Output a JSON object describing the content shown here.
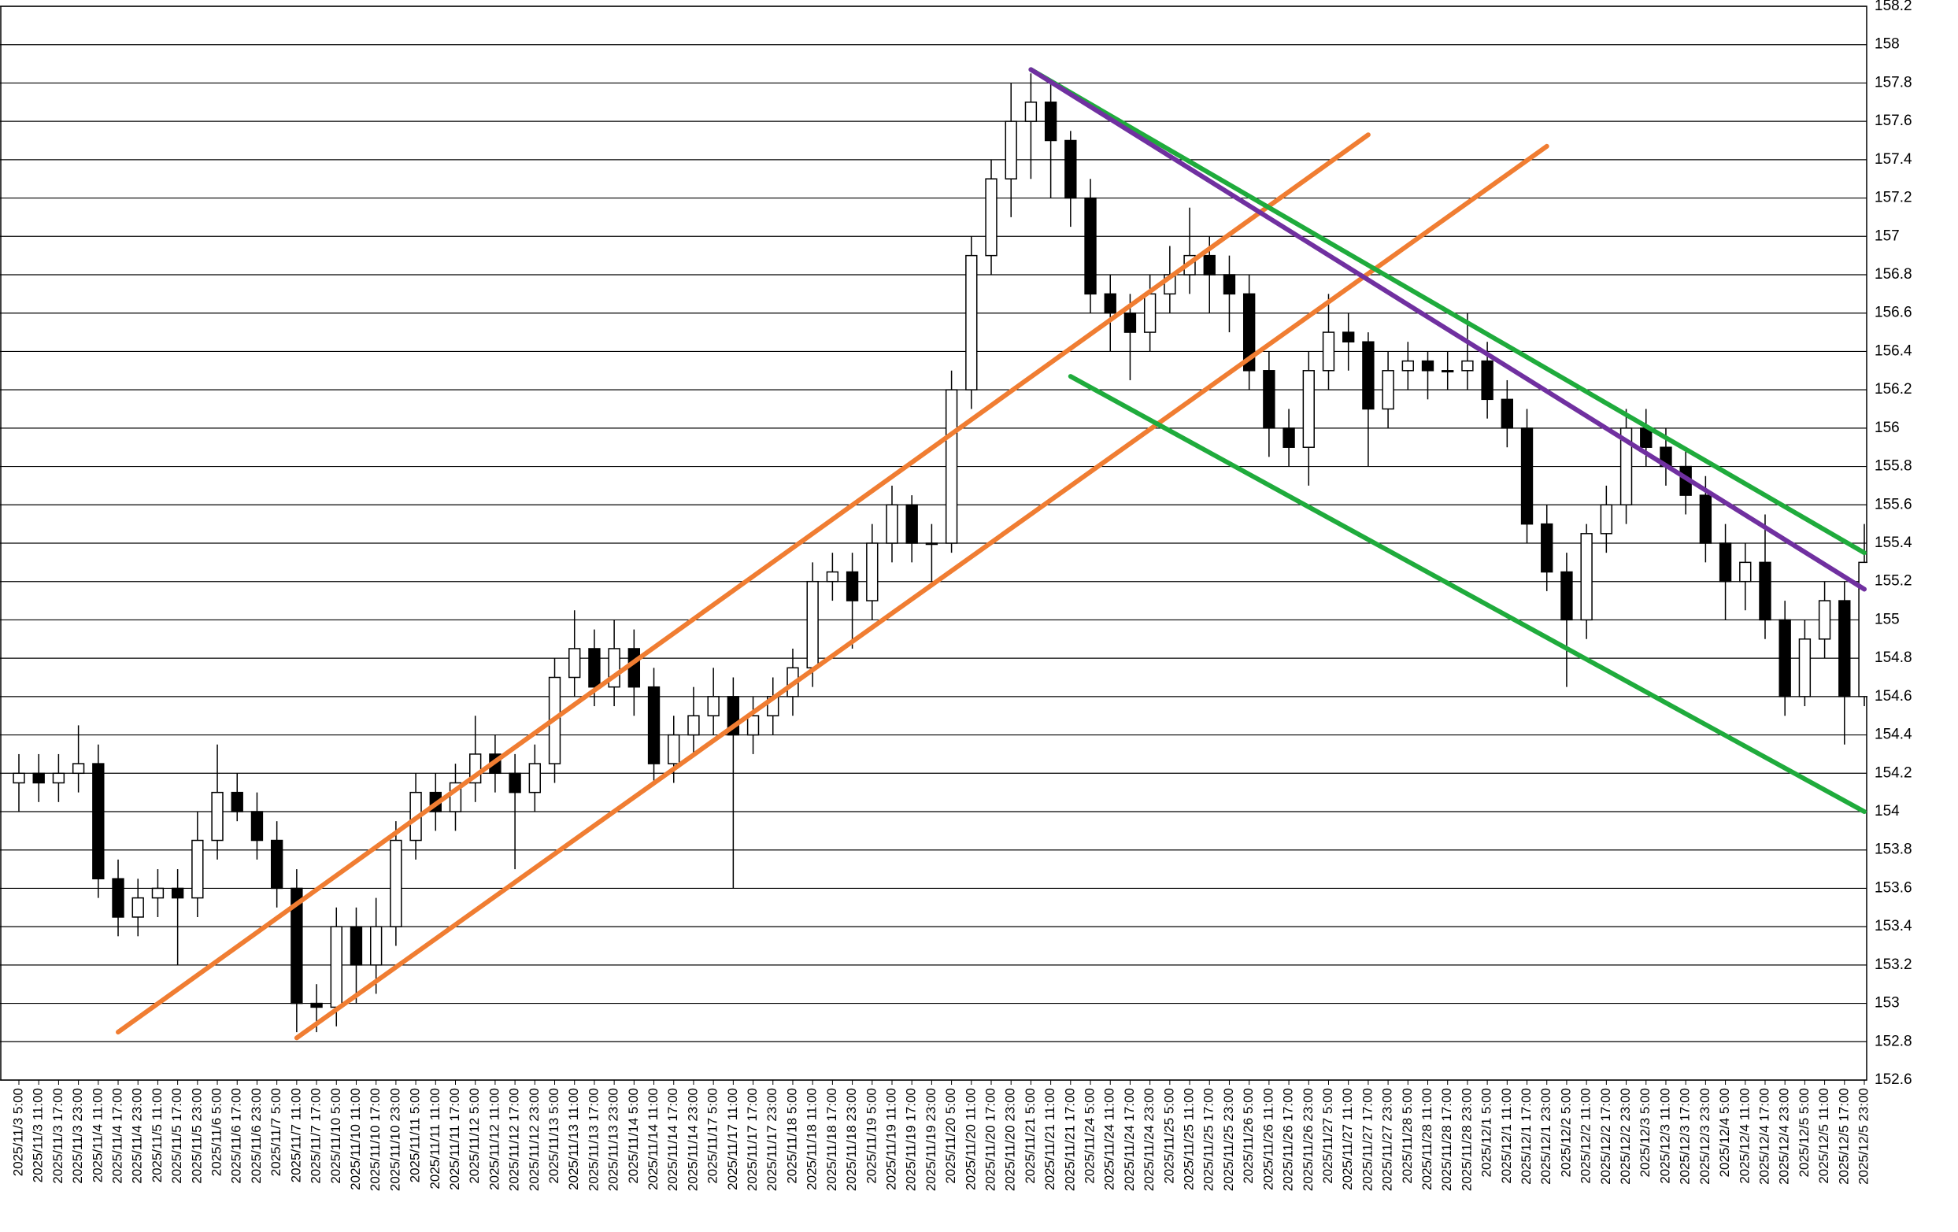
{
  "chart_data": {
    "type": "candlestick",
    "categories": [
      "2025/11/3 5:00",
      "2025/11/3 11:00",
      "2025/11/3 17:00",
      "2025/11/3 23:00",
      "2025/11/4 11:00",
      "2025/11/4 17:00",
      "2025/11/4 23:00",
      "2025/11/5 11:00",
      "2025/11/5 17:00",
      "2025/11/5 23:00",
      "2025/11/6 5:00",
      "2025/11/6 17:00",
      "2025/11/6 23:00",
      "2025/11/7 5:00",
      "2025/11/7 11:00",
      "2025/11/7 17:00",
      "2025/11/10 5:00",
      "2025/11/10 11:00",
      "2025/11/10 17:00",
      "2025/11/10 23:00",
      "2025/11/11 5:00",
      "2025/11/11 11:00",
      "2025/11/11 17:00",
      "2025/11/12 5:00",
      "2025/11/12 11:00",
      "2025/11/12 17:00",
      "2025/11/12 23:00",
      "2025/11/13 5:00",
      "2025/11/13 11:00",
      "2025/11/13 17:00",
      "2025/11/13 23:00",
      "2025/11/14 5:00",
      "2025/11/14 11:00",
      "2025/11/14 17:00",
      "2025/11/14 23:00",
      "2025/11/17 5:00",
      "2025/11/17 11:00",
      "2025/11/17 17:00",
      "2025/11/17 23:00",
      "2025/11/18 5:00",
      "2025/11/18 11:00",
      "2025/11/18 17:00",
      "2025/11/18 23:00",
      "2025/11/19 5:00",
      "2025/11/19 11:00",
      "2025/11/19 17:00",
      "2025/11/19 23:00",
      "2025/11/20 5:00",
      "2025/11/20 11:00",
      "2025/11/20 17:00",
      "2025/11/20 23:00",
      "2025/11/21 5:00",
      "2025/11/21 11:00",
      "2025/11/21 17:00",
      "2025/11/24 5:00",
      "2025/11/24 11:00",
      "2025/11/24 17:00",
      "2025/11/24 23:00",
      "2025/11/25 5:00",
      "2025/11/25 11:00",
      "2025/11/25 17:00",
      "2025/11/25 23:00",
      "2025/11/26 5:00",
      "2025/11/26 11:00",
      "2025/11/26 17:00",
      "2025/11/26 23:00",
      "2025/11/27 5:00",
      "2025/11/27 11:00",
      "2025/11/27 17:00",
      "2025/11/27 23:00",
      "2025/11/28 5:00",
      "2025/11/28 11:00",
      "2025/11/28 17:00",
      "2025/11/28 23:00",
      "2025/12/1 5:00",
      "2025/12/1 11:00",
      "2025/12/1 17:00",
      "2025/12/1 23:00",
      "2025/12/2 5:00",
      "2025/12/2 11:00",
      "2025/12/2 17:00",
      "2025/12/2 23:00",
      "2025/12/3 5:00",
      "2025/12/3 11:00",
      "2025/12/3 17:00",
      "2025/12/3 23:00",
      "2025/12/4 5:00",
      "2025/12/4 11:00",
      "2025/12/4 17:00",
      "2025/12/4 23:00",
      "2025/12/5 5:00",
      "2025/12/5 11:00",
      "2025/12/5 17:00",
      "2025/12/5 23:00"
    ],
    "open": [
      154.15,
      154.2,
      154.15,
      154.2,
      154.25,
      153.65,
      153.45,
      153.55,
      153.6,
      153.55,
      153.85,
      154.1,
      154.0,
      153.85,
      153.6,
      153.0,
      152.98,
      153.4,
      153.2,
      153.4,
      153.85,
      154.1,
      154.0,
      154.15,
      154.3,
      154.2,
      154.1,
      154.25,
      154.7,
      154.85,
      154.65,
      154.85,
      154.65,
      154.25,
      154.4,
      154.5,
      154.6,
      154.4,
      154.5,
      154.6,
      154.75,
      155.2,
      155.25,
      155.1,
      155.4,
      155.6,
      155.4,
      155.4,
      156.2,
      156.9,
      157.3,
      157.6,
      157.7,
      157.5,
      157.2,
      156.7,
      156.6,
      156.5,
      156.7,
      156.8,
      156.9,
      156.8,
      156.7,
      156.3,
      156.0,
      155.9,
      156.3,
      156.5,
      156.45,
      156.1,
      156.3,
      156.35,
      156.3,
      156.3,
      156.35,
      156.15,
      156.0,
      155.5,
      155.25,
      155.0,
      155.45,
      155.6,
      156.0,
      155.9,
      155.8,
      155.65,
      155.4,
      155.2,
      155.3,
      155.0,
      154.6,
      154.9,
      155.1,
      154.6
    ],
    "high": [
      154.3,
      154.3,
      154.3,
      154.45,
      154.35,
      153.75,
      153.65,
      153.7,
      153.7,
      154.0,
      154.35,
      154.2,
      154.1,
      153.95,
      153.7,
      153.1,
      153.5,
      153.5,
      153.55,
      153.95,
      154.2,
      154.2,
      154.25,
      154.5,
      154.4,
      154.3,
      154.35,
      154.8,
      155.05,
      154.95,
      155.0,
      154.95,
      154.75,
      154.5,
      154.65,
      154.75,
      154.7,
      154.6,
      154.7,
      154.85,
      155.3,
      155.35,
      155.35,
      155.5,
      155.7,
      155.65,
      155.5,
      156.3,
      157.0,
      157.4,
      157.8,
      157.85,
      157.8,
      157.55,
      157.3,
      156.8,
      156.7,
      156.8,
      156.95,
      157.15,
      157.0,
      156.9,
      156.8,
      156.4,
      156.1,
      156.4,
      156.7,
      156.6,
      156.5,
      156.4,
      156.45,
      156.4,
      156.4,
      156.6,
      156.45,
      156.25,
      156.1,
      155.6,
      155.35,
      155.5,
      155.7,
      156.1,
      156.1,
      156.0,
      155.9,
      155.75,
      155.5,
      155.4,
      155.55,
      155.1,
      155.0,
      155.2,
      155.2,
      155.5
    ],
    "low": [
      154.0,
      154.05,
      154.05,
      154.1,
      153.55,
      153.35,
      153.35,
      153.45,
      153.2,
      153.45,
      153.75,
      153.95,
      153.75,
      153.5,
      152.85,
      152.85,
      152.88,
      153.0,
      153.05,
      153.3,
      153.75,
      153.9,
      153.9,
      154.05,
      154.1,
      153.7,
      154.0,
      154.15,
      154.6,
      154.55,
      154.55,
      154.5,
      154.15,
      154.15,
      154.3,
      154.4,
      153.6,
      154.3,
      154.4,
      154.5,
      154.65,
      155.1,
      154.85,
      155.0,
      155.3,
      155.3,
      155.2,
      155.35,
      156.1,
      156.8,
      157.1,
      157.3,
      157.2,
      157.05,
      156.6,
      156.4,
      156.25,
      156.4,
      156.6,
      156.7,
      156.6,
      156.5,
      156.2,
      155.85,
      155.8,
      155.7,
      156.2,
      156.3,
      155.8,
      156.0,
      156.2,
      156.15,
      156.2,
      156.2,
      156.05,
      155.9,
      155.4,
      155.15,
      154.65,
      154.9,
      155.35,
      155.5,
      155.8,
      155.7,
      155.55,
      155.3,
      155.0,
      155.05,
      154.9,
      154.5,
      154.55,
      154.8,
      154.35,
      154.55
    ],
    "close": [
      154.2,
      154.15,
      154.2,
      154.25,
      153.65,
      153.45,
      153.55,
      153.6,
      153.55,
      153.85,
      154.1,
      154.0,
      153.85,
      153.6,
      153.0,
      152.98,
      153.4,
      153.2,
      153.4,
      153.85,
      154.1,
      154.0,
      154.15,
      154.3,
      154.2,
      154.1,
      154.25,
      154.7,
      154.85,
      154.65,
      154.85,
      154.65,
      154.25,
      154.4,
      154.5,
      154.6,
      154.4,
      154.5,
      154.6,
      154.75,
      155.2,
      155.25,
      155.1,
      155.4,
      155.6,
      155.4,
      155.4,
      156.2,
      156.9,
      157.3,
      157.6,
      157.7,
      157.5,
      157.2,
      156.7,
      156.6,
      156.5,
      156.7,
      156.8,
      156.9,
      156.8,
      156.7,
      156.3,
      156.0,
      155.9,
      156.3,
      156.5,
      156.45,
      156.1,
      156.3,
      156.35,
      156.3,
      156.3,
      156.35,
      156.15,
      156.0,
      155.5,
      155.25,
      155.0,
      155.45,
      155.6,
      156.0,
      155.9,
      155.8,
      155.65,
      155.4,
      155.2,
      155.3,
      155.0,
      154.6,
      154.9,
      155.1,
      154.6,
      155.3
    ],
    "up_color": "#ffffff",
    "down_color": "#000000",
    "ylim": [
      152.6,
      158.2
    ],
    "yticks": [
      152.6,
      152.8,
      153,
      153.2,
      153.4,
      153.6,
      153.8,
      154,
      154.2,
      154.4,
      154.6,
      154.8,
      155,
      155.2,
      155.4,
      155.6,
      155.8,
      156,
      156.2,
      156.4,
      156.6,
      156.8,
      157,
      157.2,
      157.4,
      157.6,
      157.8,
      158,
      158.2
    ],
    "grid": true,
    "trendlines": [
      {
        "color": "#f07d32",
        "from": "2025/11/4 17:00",
        "to": "2025/11/27 17:00",
        "y": [
          152.85,
          157.53
        ]
      },
      {
        "color": "#f07d32",
        "from": "2025/11/7 11:00",
        "to": "2025/12/1 23:00",
        "y": [
          152.82,
          157.47
        ]
      },
      {
        "color": "#1fab3c",
        "from": "2025/11/21 5:00",
        "to": "2025/12/5 23:00",
        "y": [
          157.87,
          155.35
        ]
      },
      {
        "color": "#1fab3c",
        "from": "2025/11/21 17:00",
        "to": "2025/12/5 23:00",
        "y": [
          156.27,
          154.0
        ]
      },
      {
        "color": "#7030a0",
        "from": "2025/11/21 5:00",
        "to": "2025/12/5 23:00",
        "y": [
          157.87,
          155.16
        ]
      }
    ]
  }
}
